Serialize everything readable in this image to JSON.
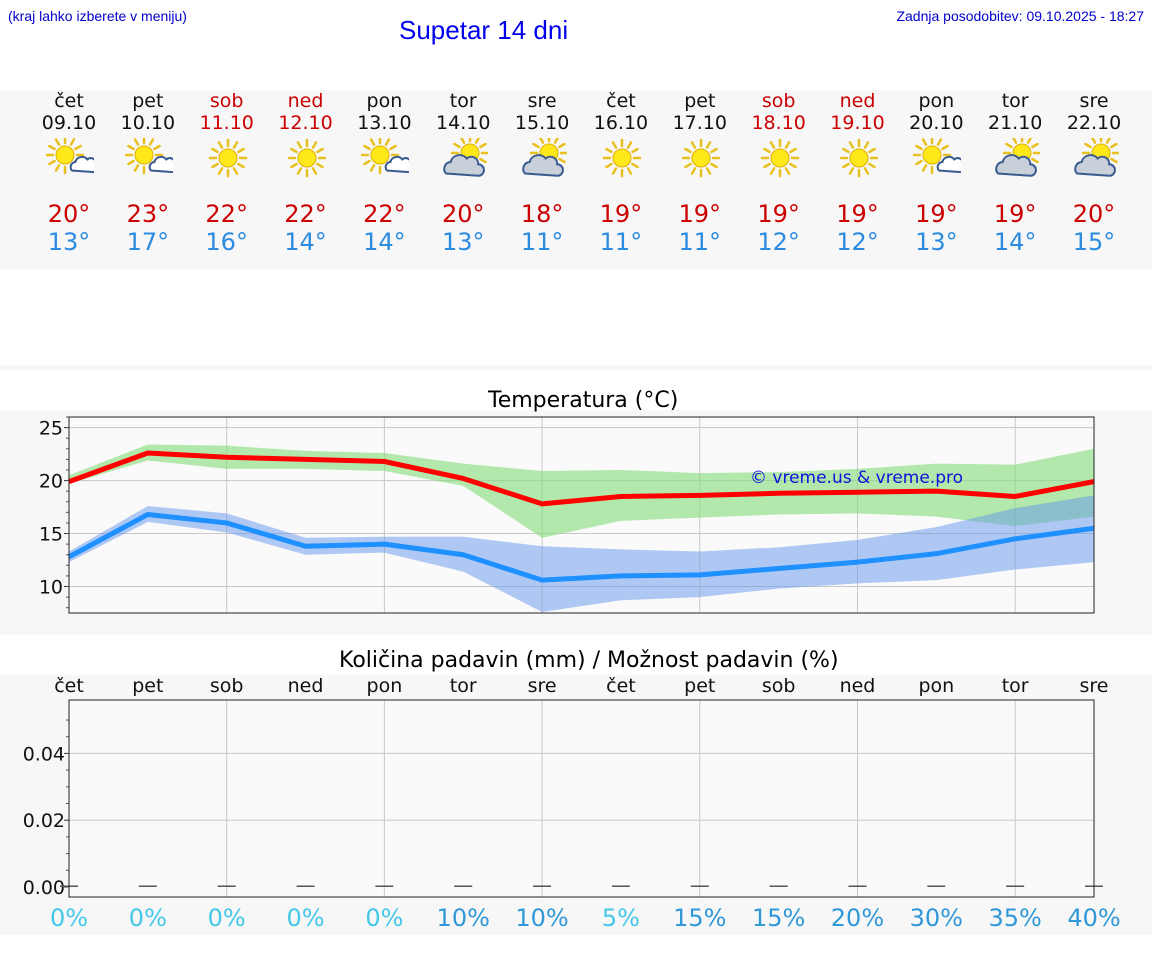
{
  "header": {
    "menu_note": "(kraj lahko izberete v meniju)",
    "title": "Supetar 14 dni",
    "last_update": "Zadnja posodobitev: 09.10.2025 - 18:27"
  },
  "colors": {
    "weekend": "#cc0000",
    "tmax": "#cc0000",
    "tmin": "#2a8be0",
    "maxline": "#ff0000",
    "minline": "#1e90ff"
  },
  "days": [
    {
      "name": "čet",
      "date": "09.10",
      "weekend": false,
      "icon": "sun-cloud-icon",
      "tmax": "20°",
      "tmin": "13°"
    },
    {
      "name": "pet",
      "date": "10.10",
      "weekend": false,
      "icon": "sun-cloud-icon",
      "tmax": "23°",
      "tmin": "17°"
    },
    {
      "name": "sob",
      "date": "11.10",
      "weekend": true,
      "icon": "sun-icon",
      "tmax": "22°",
      "tmin": "16°"
    },
    {
      "name": "ned",
      "date": "12.10",
      "weekend": true,
      "icon": "sun-icon",
      "tmax": "22°",
      "tmin": "14°"
    },
    {
      "name": "pon",
      "date": "13.10",
      "weekend": false,
      "icon": "sun-cloud-icon",
      "tmax": "22°",
      "tmin": "14°"
    },
    {
      "name": "tor",
      "date": "14.10",
      "weekend": false,
      "icon": "cloud-sun-icon",
      "tmax": "20°",
      "tmin": "13°"
    },
    {
      "name": "sre",
      "date": "15.10",
      "weekend": false,
      "icon": "cloud-sun-icon",
      "tmax": "18°",
      "tmin": "11°"
    },
    {
      "name": "čet",
      "date": "16.10",
      "weekend": false,
      "icon": "sun-icon",
      "tmax": "19°",
      "tmin": "11°"
    },
    {
      "name": "pet",
      "date": "17.10",
      "weekend": false,
      "icon": "sun-icon",
      "tmax": "19°",
      "tmin": "11°"
    },
    {
      "name": "sob",
      "date": "18.10",
      "weekend": true,
      "icon": "sun-icon",
      "tmax": "19°",
      "tmin": "12°"
    },
    {
      "name": "ned",
      "date": "19.10",
      "weekend": true,
      "icon": "sun-icon",
      "tmax": "19°",
      "tmin": "12°"
    },
    {
      "name": "pon",
      "date": "20.10",
      "weekend": false,
      "icon": "sun-cloud-icon",
      "tmax": "19°",
      "tmin": "13°"
    },
    {
      "name": "tor",
      "date": "21.10",
      "weekend": false,
      "icon": "cloud-sun-icon",
      "tmax": "19°",
      "tmin": "14°"
    },
    {
      "name": "sre",
      "date": "22.10",
      "weekend": false,
      "icon": "cloud-sun-icon",
      "tmax": "20°",
      "tmin": "15°"
    }
  ],
  "chart_data": [
    {
      "type": "line",
      "title": "Temperatura (°C)",
      "watermark": "© vreme.us & vreme.pro",
      "x": [
        0,
        1,
        2,
        3,
        4,
        5,
        6,
        7,
        8,
        9,
        10,
        11,
        12,
        13
      ],
      "ylim": [
        7.5,
        26
      ],
      "yticks": [
        "10",
        "15",
        "20",
        "25"
      ],
      "yticks_values": [
        10,
        15,
        20,
        25
      ],
      "series": [
        {
          "name": "max",
          "values": [
            19.9,
            22.6,
            22.2,
            22.0,
            21.8,
            20.2,
            17.8,
            18.5,
            18.6,
            18.8,
            18.9,
            19.0,
            18.5,
            19.9
          ],
          "band_low": [
            19.7,
            21.9,
            21.1,
            21.1,
            20.9,
            19.5,
            14.6,
            16.2,
            16.5,
            16.8,
            16.9,
            16.6,
            15.7,
            16.6
          ],
          "band_high": [
            20.5,
            23.4,
            23.3,
            22.8,
            22.6,
            21.6,
            20.9,
            21.0,
            20.7,
            20.8,
            21.1,
            21.6,
            21.5,
            23.0
          ]
        },
        {
          "name": "min",
          "values": [
            12.8,
            16.8,
            16.0,
            13.8,
            14.0,
            13.0,
            10.6,
            11.0,
            11.1,
            11.7,
            12.3,
            13.1,
            14.5,
            15.5
          ],
          "band_low": [
            12.3,
            16.1,
            15.1,
            13.0,
            13.2,
            11.4,
            7.6,
            8.7,
            9.0,
            9.8,
            10.3,
            10.6,
            11.6,
            12.3
          ],
          "band_high": [
            13.3,
            17.6,
            16.9,
            14.6,
            14.7,
            14.7,
            13.8,
            13.5,
            13.3,
            13.7,
            14.4,
            15.6,
            17.4,
            18.6
          ]
        }
      ]
    },
    {
      "type": "bar",
      "title": "Količina padavin (mm) / Možnost padavin (%)",
      "categories": [
        "čet",
        "pet",
        "sob",
        "ned",
        "pon",
        "tor",
        "sre",
        "čet",
        "pet",
        "sob",
        "ned",
        "pon",
        "tor",
        "sre"
      ],
      "values": [
        0,
        0,
        0,
        0,
        0,
        0,
        0,
        0,
        0,
        0,
        0,
        0,
        0,
        0
      ],
      "ylim": [
        -0.003,
        0.056
      ],
      "yticks": [
        "0.00",
        "0.02",
        "0.04"
      ],
      "yticks_values": [
        0,
        0.02,
        0.04
      ],
      "probability": [
        "0%",
        "0%",
        "0%",
        "0%",
        "0%",
        "10%",
        "10%",
        "5%",
        "15%",
        "15%",
        "20%",
        "30%",
        "35%",
        "40%"
      ],
      "probability_values": [
        0,
        0,
        0,
        0,
        0,
        10,
        10,
        5,
        15,
        15,
        20,
        30,
        35,
        40
      ]
    }
  ]
}
